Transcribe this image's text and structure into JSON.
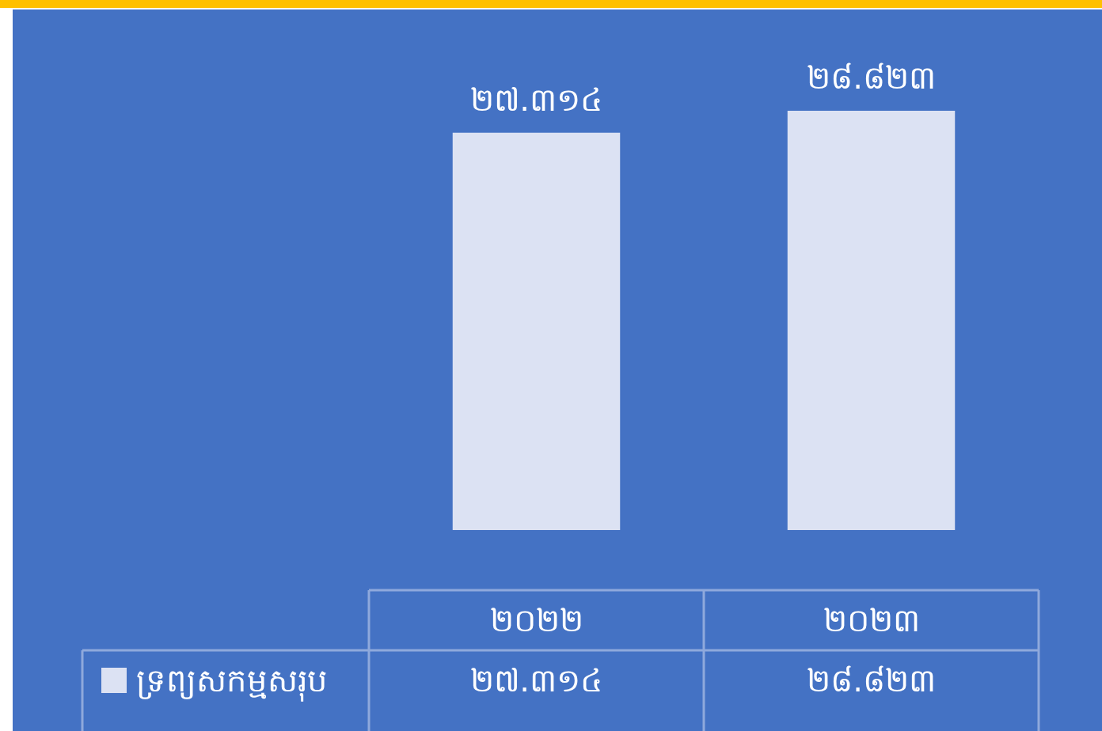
{
  "chart_data": {
    "type": "bar",
    "categories": [
      "២០២២",
      "២០២៣"
    ],
    "series": [
      {
        "name": "ទ្រព្យសកម្មសរុប",
        "color": "#dce2f3",
        "values": [
          27.314,
          28.823
        ],
        "value_labels": [
          "២៧.៣១៤",
          "២៨.៨២៣"
        ]
      }
    ]
  }
}
